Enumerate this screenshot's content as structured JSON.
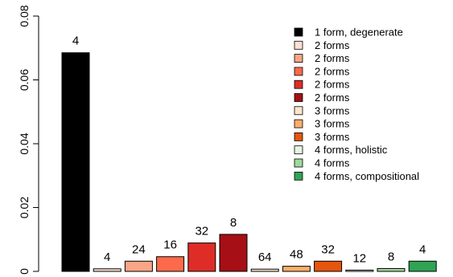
{
  "chart_data": {
    "type": "bar",
    "categories": [
      "1 form, degenerate",
      "2 forms",
      "2 forms",
      "2 forms",
      "2 forms",
      "2 forms",
      "3 forms",
      "3 forms",
      "3 forms",
      "4 forms, holistic",
      "4 forms",
      "4 forms, compositional"
    ],
    "values": [
      0.0685,
      0.0008,
      0.0032,
      0.0046,
      0.0089,
      0.0116,
      0.0007,
      0.0016,
      0.0032,
      0.0004,
      0.0009,
      0.0032
    ],
    "bar_labels": [
      "4",
      "4",
      "24",
      "16",
      "32",
      "8",
      "64",
      "48",
      "32",
      "12",
      "8",
      "4"
    ],
    "colors": [
      "#000000",
      "#FEE0D2",
      "#FCA586",
      "#FB6A4A",
      "#DE2D26",
      "#A50F15",
      "#FEE6CE",
      "#FDAE6B",
      "#E6550D",
      "#E5F5E0",
      "#A1D99B",
      "#31A354"
    ],
    "ylim": [
      0,
      0.08
    ],
    "yticks": [
      0,
      0.02,
      0.04,
      0.06,
      0.08
    ],
    "ytick_labels": [
      "0",
      "0.02",
      "0.04",
      "0.06",
      "0.08"
    ],
    "legend": {
      "placement": "top-right",
      "entries": [
        "1 form, degenerate",
        "2 forms",
        "2 forms",
        "2 forms",
        "2 forms",
        "2 forms",
        "3 forms",
        "3 forms",
        "3 forms",
        "4 forms, holistic",
        "4 forms",
        "4 forms, compositional"
      ]
    },
    "title": "",
    "xlabel": "",
    "ylabel": "",
    "grid": false
  }
}
